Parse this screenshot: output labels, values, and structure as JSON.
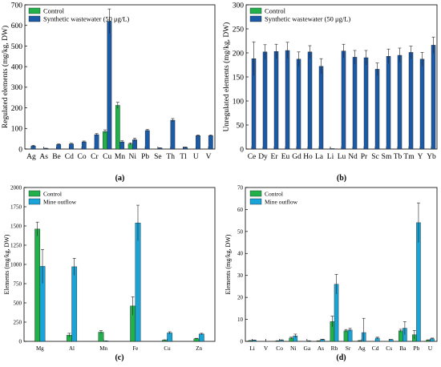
{
  "chart_data": [
    {
      "type": "bar",
      "panel_label": "(a)",
      "ylabel": "Regulated elements (mg/kg, DW)",
      "ylim": [
        0,
        700
      ],
      "yticks": [
        0,
        100,
        200,
        300,
        400,
        500,
        600,
        700
      ],
      "categories": [
        "Ag",
        "As",
        "Be",
        "Cd",
        "Co",
        "Cr",
        "Cu",
        "Mn",
        "Ni",
        "Pb",
        "Se",
        "Th",
        "Tl",
        "U",
        "V"
      ],
      "legend": "top-left",
      "series": [
        {
          "name": "Control",
          "color": "#22b04b",
          "values": [
            0,
            0,
            0,
            0,
            0,
            0,
            85,
            212,
            25,
            0,
            0,
            0,
            0,
            0,
            0
          ],
          "errors": [
            0,
            0,
            0,
            0,
            0,
            0,
            8,
            15,
            5,
            0,
            0,
            0,
            0,
            0,
            0
          ]
        },
        {
          "name": "Synthetic wastewater (50 μg/L)",
          "color": "#1b5aa6",
          "values": [
            15,
            3,
            22,
            25,
            35,
            70,
            620,
            35,
            45,
            90,
            5,
            140,
            8,
            65,
            65
          ],
          "errors": [
            3,
            1,
            3,
            3,
            4,
            5,
            60,
            5,
            8,
            5,
            1,
            8,
            2,
            3,
            3
          ]
        }
      ]
    },
    {
      "type": "bar",
      "panel_label": "(b)",
      "ylabel": "Unregulated elements (mg/kg, DW)",
      "ylim": [
        0,
        300
      ],
      "yticks": [
        0,
        50,
        100,
        150,
        200,
        250,
        300
      ],
      "categories": [
        "Ce",
        "Dy",
        "Er",
        "Eu",
        "Gd",
        "Ho",
        "La",
        "Li",
        "Lu",
        "Nd",
        "Pr",
        "Sc",
        "Sm",
        "Tb",
        "Tm",
        "Y",
        "Yb"
      ],
      "legend": "top-left",
      "series": [
        {
          "name": "Control",
          "color": "#22b04b",
          "values": [
            0,
            0,
            0,
            0,
            0,
            0,
            0,
            0,
            0,
            0,
            0,
            0,
            0,
            0,
            0,
            0,
            0
          ],
          "errors": [
            0,
            0,
            0,
            0,
            0,
            0,
            0,
            0,
            0,
            0,
            0,
            0,
            0,
            0,
            0,
            0,
            0
          ]
        },
        {
          "name": "Synthetic wastewater (50 μg/L)",
          "color": "#1b5aa6",
          "values": [
            188,
            202,
            203,
            205,
            187,
            202,
            172,
            1,
            204,
            191,
            190,
            166,
            193,
            195,
            201,
            187,
            216
          ],
          "errors": [
            35,
            15,
            15,
            17,
            15,
            13,
            16,
            0,
            14,
            14,
            15,
            13,
            15,
            15,
            13,
            14,
            17
          ]
        }
      ]
    },
    {
      "type": "bar",
      "panel_label": "(c)",
      "ylabel": "Elements (mg/kg, DW)",
      "ylim": [
        0,
        2000
      ],
      "yticks": [
        0,
        250,
        500,
        750,
        1000,
        1250,
        1500,
        1750,
        2000
      ],
      "categories": [
        "Mg",
        "Al",
        "Mn",
        "Fe",
        "Cu",
        "Zn"
      ],
      "legend": "top-left",
      "series": [
        {
          "name": "Control",
          "color": "#22b04b",
          "values": [
            1460,
            80,
            120,
            460,
            15,
            35
          ],
          "errors": [
            90,
            25,
            20,
            120,
            5,
            5
          ]
        },
        {
          "name": "Mine outflow",
          "color": "#1aa3d6",
          "values": [
            975,
            970,
            5,
            1540,
            110,
            95
          ],
          "errors": [
            220,
            110,
            2,
            230,
            15,
            10
          ]
        }
      ]
    },
    {
      "type": "bar",
      "panel_label": "(d)",
      "ylabel": "Elements (mg/kg, DW)",
      "ylim": [
        0,
        70
      ],
      "yticks": [
        0,
        10,
        20,
        30,
        40,
        50,
        60,
        70
      ],
      "categories": [
        "Li",
        "V",
        "Co",
        "Ni",
        "Ga",
        "As",
        "Rb",
        "Sr",
        "Ag",
        "Cd",
        "Cs",
        "Ba",
        "Pb",
        "U"
      ],
      "legend": "top-left",
      "series": [
        {
          "name": "Control",
          "color": "#22b04b",
          "values": [
            0.3,
            0,
            0.2,
            1.5,
            0,
            0.2,
            9,
            4.8,
            0.3,
            0,
            0,
            4.8,
            3,
            0.5
          ],
          "errors": [
            0.1,
            0,
            0.1,
            0.4,
            0,
            0.1,
            2.5,
            0.6,
            0.1,
            0,
            0,
            0.7,
            2,
            0.2
          ]
        },
        {
          "name": "Mine outflow",
          "color": "#1aa3d6",
          "values": [
            0.5,
            0,
            0.5,
            2.5,
            0.2,
            0.8,
            26,
            5.2,
            4,
            1.5,
            0.8,
            6,
            54,
            1.2
          ],
          "errors": [
            0.1,
            0,
            0.2,
            0.8,
            0.1,
            0.2,
            4.5,
            0.7,
            6.5,
            0.4,
            0.1,
            3,
            9,
            0.3
          ]
        }
      ]
    }
  ]
}
